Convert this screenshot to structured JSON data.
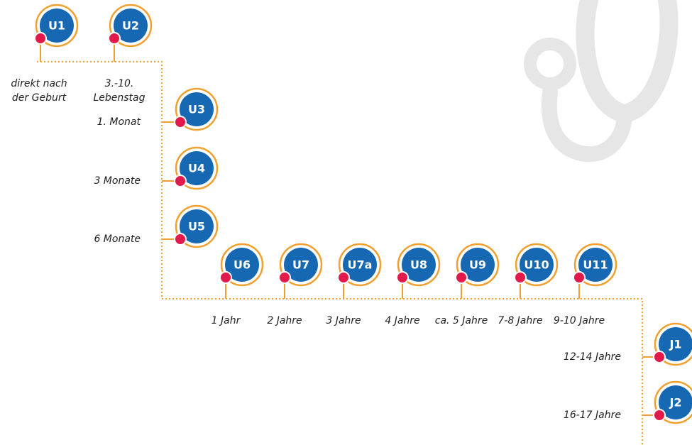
{
  "nodes": [
    {
      "label": "U1",
      "age": [
        "direkt nach",
        "der Geburt"
      ]
    },
    {
      "label": "U2",
      "age": [
        "3.-10.",
        "Lebenstag"
      ]
    },
    {
      "label": "U3",
      "age": [
        "1. Monat"
      ]
    },
    {
      "label": "U4",
      "age": [
        "3 Monate"
      ]
    },
    {
      "label": "U5",
      "age": [
        "6 Monate"
      ]
    },
    {
      "label": "U6",
      "age": [
        "1 Jahr"
      ]
    },
    {
      "label": "U7",
      "age": [
        "2 Jahre"
      ]
    },
    {
      "label": "U7a",
      "age": [
        "3 Jahre"
      ]
    },
    {
      "label": "U8",
      "age": [
        "4 Jahre"
      ]
    },
    {
      "label": "U9",
      "age": [
        "ca. 5 Jahre"
      ]
    },
    {
      "label": "U10",
      "age": [
        "7-8 Jahre"
      ]
    },
    {
      "label": "U11",
      "age": [
        "9-10 Jahre"
      ]
    },
    {
      "label": "J1",
      "age": [
        "12-14 Jahre"
      ]
    },
    {
      "label": "J2",
      "age": [
        "16-17 Jahre"
      ]
    }
  ]
}
